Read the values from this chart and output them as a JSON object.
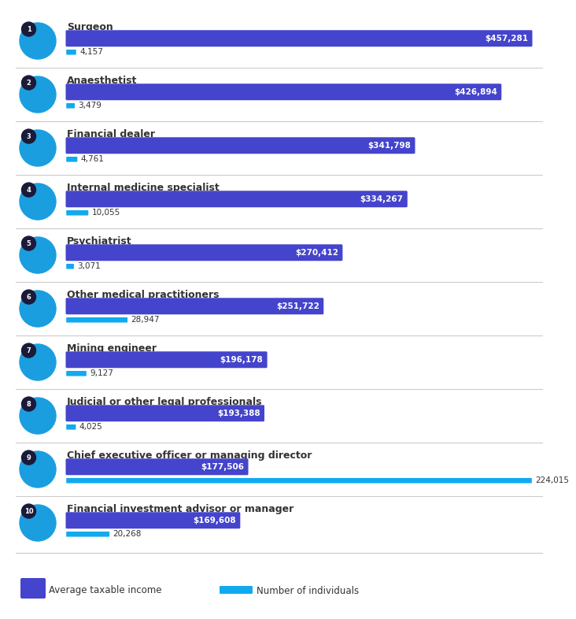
{
  "occupations": [
    {
      "rank": 1,
      "name": "Surgeon",
      "income": 457281,
      "individuals": 4157
    },
    {
      "rank": 2,
      "name": "Anaesthetist",
      "income": 426894,
      "individuals": 3479
    },
    {
      "rank": 3,
      "name": "Financial dealer",
      "income": 341798,
      "individuals": 4761
    },
    {
      "rank": 4,
      "name": "Internal medicine specialist",
      "income": 334267,
      "individuals": 10055
    },
    {
      "rank": 5,
      "name": "Psychiatrist",
      "income": 270412,
      "individuals": 3071
    },
    {
      "rank": 6,
      "name": "Other medical practitioners",
      "income": 251722,
      "individuals": 28947
    },
    {
      "rank": 7,
      "name": "Mining engineer",
      "income": 196178,
      "individuals": 9127
    },
    {
      "rank": 8,
      "name": "Judicial or other legal professionals",
      "income": 193388,
      "individuals": 4025
    },
    {
      "rank": 9,
      "name": "Chief executive officer or managing director",
      "income": 177506,
      "individuals": 224015
    },
    {
      "rank": 10,
      "name": "Financial investment advisor or manager",
      "income": 169608,
      "individuals": 20268
    }
  ],
  "max_income": 457281,
  "max_individuals": 224015,
  "income_bar_color": "#4444cc",
  "individuals_bar_color": "#11aaee",
  "background_color": "#ffffff",
  "text_color": "#333333",
  "avatar_circle_color": "#1a9ee0",
  "rank_circle_color": "#1a1a3a",
  "separator_color": "#cccccc",
  "legend_income_color": "#4444cc",
  "legend_indiv_color": "#11aaee"
}
